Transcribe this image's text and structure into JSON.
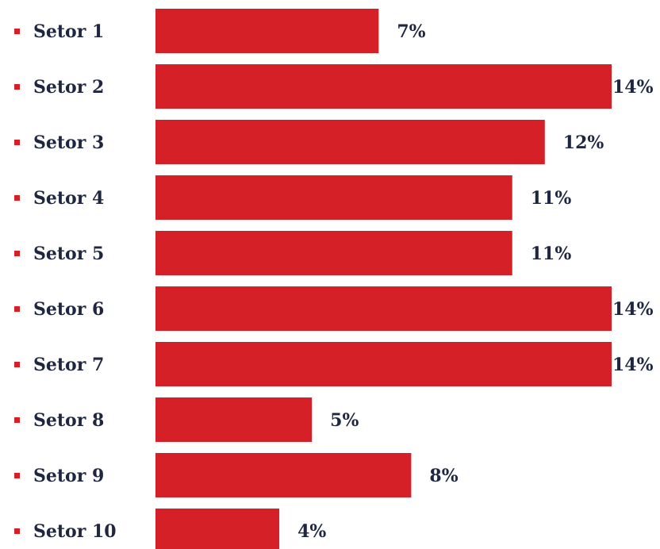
{
  "chart_data": {
    "type": "barh",
    "categories": [
      "Setor 1",
      "Setor 2",
      "Setor 3",
      "Setor 4",
      "Setor 5",
      "Setor 6",
      "Setor 7",
      "Setor 8",
      "Setor 9",
      "Setor 10"
    ],
    "values": [
      6.85,
      14,
      11.95,
      10.95,
      10.95,
      14,
      14,
      4.8,
      7.85,
      3.8
    ],
    "value_labels": [
      "7%",
      "14%",
      "12%",
      "11%",
      "11%",
      "14%",
      "14%",
      "5%",
      "8%",
      "4%"
    ],
    "color": "#d62027",
    "xlim": [
      0,
      14
    ]
  }
}
